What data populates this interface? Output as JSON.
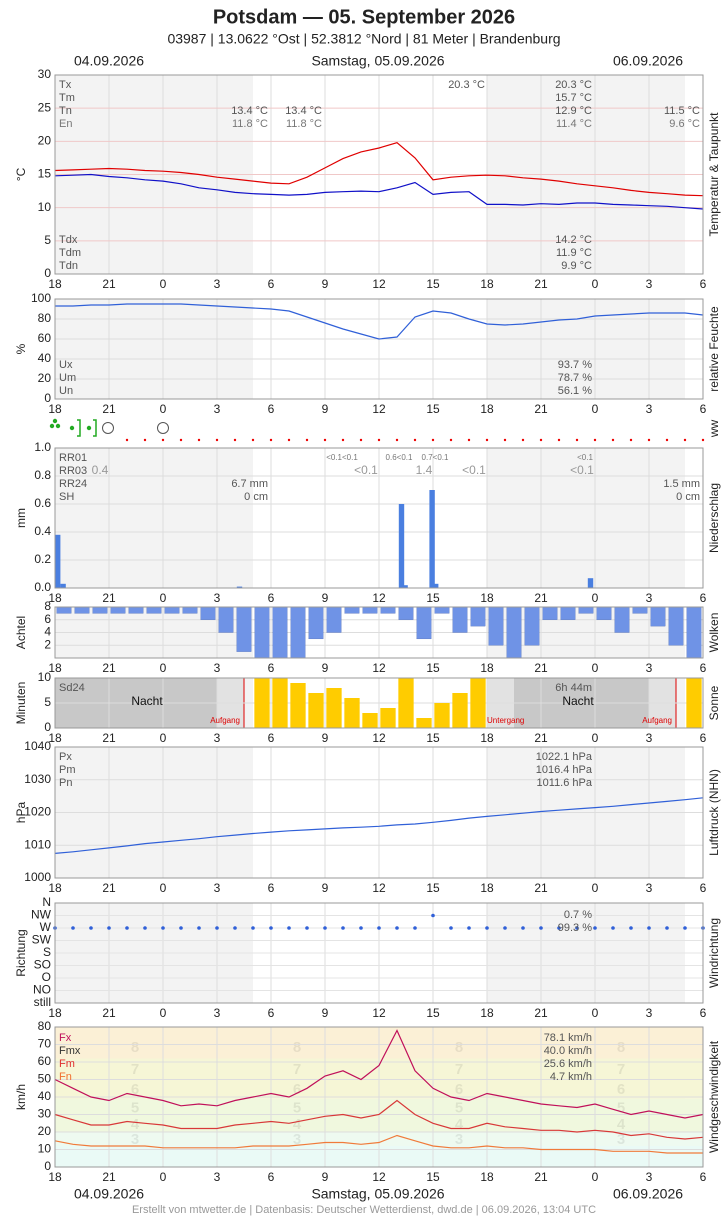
{
  "title": "Potsdam  —  05. September 2026",
  "subtitle": "03987  |  13.0622 °Ost  |  52.3812 °Nord  |  81 Meter  |  Brandenburg",
  "dates": [
    "04.09.2026",
    "Samstag, 05.09.2026",
    "06.09.2026"
  ],
  "footer": "Erstellt von mtwetter.de | Datenbasis: Deutscher Wetterdienst, dwd.de | 06.09.2026, 13:04 UTC",
  "x_axis": {
    "xlim": [
      -6,
      30
    ],
    "xticks": [
      {
        "value": -6,
        "label": "18"
      },
      {
        "value": -3,
        "label": "21"
      },
      0,
      3,
      6,
      9,
      12,
      15,
      18,
      21,
      {
        "value": 24,
        "label": "0"
      },
      {
        "value": 27,
        "label": "3"
      },
      {
        "value": 30,
        "label": "6"
      }
    ]
  },
  "chart_data": [
    {
      "type": "line",
      "side_label": "Temperatur & Taupunkt",
      "ylabel": "°C",
      "ylim": [
        0,
        30
      ],
      "yticks": [
        0,
        5,
        10,
        15,
        20,
        25,
        30
      ],
      "x": [
        -6,
        -5,
        -4,
        -3,
        -2,
        -1,
        0,
        1,
        2,
        3,
        4,
        5,
        6,
        7,
        8,
        9,
        10,
        11,
        12,
        13,
        14,
        15,
        16,
        17,
        18,
        19,
        20,
        21,
        22,
        23,
        24,
        25,
        26,
        27,
        28,
        29,
        30
      ],
      "series": [
        {
          "color": "#e00000",
          "values": [
            15.6,
            15.7,
            15.8,
            15.9,
            15.8,
            15.6,
            15.5,
            15.3,
            15.0,
            14.6,
            14.3,
            14.0,
            13.7,
            13.6,
            14.6,
            16.0,
            17.4,
            18.4,
            19.0,
            19.8,
            17.5,
            14.2,
            14.6,
            14.8,
            14.9,
            14.8,
            14.5,
            14.3,
            14.0,
            13.6,
            13.3,
            13.0,
            12.6,
            12.3,
            12.1,
            11.9,
            11.8
          ]
        },
        {
          "color": "#1010c8",
          "values": [
            14.8,
            14.9,
            15.0,
            14.7,
            14.5,
            14.2,
            14.0,
            13.6,
            13.0,
            12.7,
            12.3,
            12.1,
            12.0,
            11.9,
            12.0,
            12.3,
            12.4,
            12.5,
            12.4,
            13.0,
            13.8,
            12.0,
            12.3,
            12.4,
            10.5,
            10.5,
            10.4,
            10.6,
            10.5,
            10.7,
            10.7,
            10.5,
            10.4,
            10.3,
            10.2,
            10.0,
            9.8
          ]
        }
      ],
      "notes": [
        "Tx",
        "Tm",
        "Tn",
        "En",
        "20.3 °C",
        "20.3 °C",
        "15.7 °C",
        "12.9 °C",
        "11.4 °C",
        "13.4 °C",
        "11.8 °C",
        "13.4 °C",
        "11.8 °C",
        "11.5 °C",
        "9.6 °C",
        "Tdx",
        "Tdm",
        "Tdn",
        "14.2 °C",
        "11.9 °C",
        "9.9 °C"
      ]
    },
    {
      "type": "line",
      "side_label": "relative Feuchte",
      "ylabel": "%",
      "ylim": [
        0,
        100
      ],
      "yticks": [
        0,
        20,
        40,
        60,
        80,
        100
      ],
      "color": "#3060d8",
      "x": [
        -6,
        -5,
        -4,
        -3,
        -2,
        -1,
        0,
        1,
        2,
        3,
        4,
        5,
        6,
        7,
        8,
        9,
        10,
        11,
        12,
        13,
        14,
        15,
        16,
        17,
        18,
        19,
        20,
        21,
        22,
        23,
        24,
        25,
        26,
        27,
        28,
        29,
        30
      ],
      "values": [
        93,
        93,
        94,
        94,
        95,
        95,
        95,
        95,
        94,
        93,
        92,
        91,
        90,
        88,
        82,
        76,
        70,
        65,
        60,
        62,
        82,
        88,
        86,
        80,
        75,
        74,
        75,
        77,
        79,
        80,
        83,
        84,
        85,
        86,
        86,
        86,
        84
      ],
      "notes": [
        "Ux",
        "Um",
        "Un",
        "93.7 %",
        "78.7 %",
        "56.1 %"
      ]
    },
    {
      "type": "symbols",
      "side_label": "ww"
    },
    {
      "type": "bar",
      "side_label": "Niederschlag",
      "ylabel": "mm",
      "ylim": [
        0,
        1
      ],
      "color": "#4a7fe0",
      "yticks": [
        {
          "value": 0,
          "label": "0.0"
        },
        {
          "value": 0.2,
          "label": "0.2"
        },
        {
          "value": 0.4,
          "label": "0.4"
        },
        {
          "value": 0.6,
          "label": "0.6"
        },
        {
          "value": 0.8,
          "label": "0.8"
        },
        {
          "value": 1,
          "label": "1.0"
        }
      ],
      "x": [
        -6,
        -5.7,
        4.1,
        13.1,
        13.3,
        14.8,
        15.0,
        23.6
      ],
      "values": [
        0.38,
        0.03,
        0.01,
        0.6,
        0.02,
        0.7,
        0.03,
        0.07
      ],
      "notes": [
        "RR01",
        "RR03",
        "RR24",
        "SH",
        "0.4",
        "6.7 mm",
        "0 cm",
        "<0.1<0.1",
        "0.6<0.1",
        "0.7<0.1",
        "<0.1",
        "<0.1",
        "1.4",
        "<0.1",
        "<0.1",
        "1.5 mm",
        "0 cm"
      ]
    },
    {
      "type": "bar",
      "from_top": true,
      "side_label": "Wolken",
      "ylabel": "Achtel",
      "ylim": [
        0,
        8
      ],
      "yticks": [
        2,
        4,
        6,
        8
      ],
      "color": "#6f93e6",
      "x": [
        -6,
        -5,
        -4,
        -3,
        -2,
        -1,
        0,
        1,
        2,
        3,
        4,
        5,
        6,
        7,
        8,
        9,
        10,
        11,
        12,
        13,
        14,
        15,
        16,
        17,
        18,
        19,
        20,
        21,
        22,
        23,
        24,
        25,
        26,
        27,
        28,
        29
      ],
      "values": [
        1,
        1,
        1,
        1,
        1,
        1,
        1,
        1,
        2,
        4,
        7,
        8,
        8,
        8,
        5,
        4,
        1,
        1,
        1,
        2,
        5,
        1,
        4,
        3,
        6,
        8,
        6,
        2,
        2,
        1,
        2,
        4,
        1,
        3,
        6,
        8
      ]
    },
    {
      "type": "bar",
      "side_label": "Sonne",
      "ylabel": "Minuten",
      "ylim": [
        0,
        10
      ],
      "yticks": [
        0,
        5,
        10
      ],
      "color": "#ffcc00",
      "x": [
        -6,
        -5,
        -4,
        -3,
        -2,
        -1,
        0,
        1,
        2,
        3,
        4,
        5,
        6,
        7,
        8,
        9,
        10,
        11,
        12,
        13,
        14,
        15,
        16,
        17,
        18,
        19,
        20,
        21,
        22,
        23,
        24,
        25,
        26,
        27,
        28,
        29
      ],
      "values": [
        0,
        0,
        0,
        0,
        0,
        0,
        0,
        0,
        0,
        0,
        0,
        10,
        10,
        9,
        7,
        8,
        6,
        3,
        4,
        10,
        2,
        5,
        7,
        10,
        0,
        0,
        0,
        0,
        0,
        0,
        0,
        0,
        0,
        0,
        0,
        10
      ],
      "notes": [
        "Sd24",
        "Nacht",
        "Aufgang",
        "Untergang",
        "6h 44m",
        "Nacht",
        "Aufgang"
      ]
    },
    {
      "type": "line",
      "side_label": "Luftdruck (NHN)",
      "ylabel": "hPa",
      "ylim": [
        1000,
        1040
      ],
      "yticks": [
        1000,
        1010,
        1020,
        1030,
        1040
      ],
      "color": "#3060d8",
      "x": [
        -6,
        -5,
        -4,
        -3,
        -2,
        -1,
        0,
        1,
        2,
        3,
        4,
        5,
        6,
        7,
        8,
        9,
        10,
        11,
        12,
        13,
        14,
        15,
        16,
        17,
        18,
        19,
        20,
        21,
        22,
        23,
        24,
        25,
        26,
        27,
        28,
        29,
        30
      ],
      "values": [
        1007.5,
        1008,
        1008.6,
        1009.2,
        1009.8,
        1010.5,
        1011,
        1011.5,
        1012,
        1012.6,
        1013.1,
        1013.6,
        1014,
        1014.4,
        1014.7,
        1015,
        1015.3,
        1015.5,
        1015.8,
        1016.2,
        1016.5,
        1017,
        1017.6,
        1018.3,
        1018.8,
        1019.3,
        1019.8,
        1020.3,
        1020.7,
        1021.1,
        1021.5,
        1021.9,
        1022.4,
        1022.9,
        1023.4,
        1023.9,
        1024.5
      ],
      "notes": [
        "Px",
        "Pm",
        "Pn",
        "1022.1 hPa",
        "1016.4 hPa",
        "1011.6 hPa"
      ]
    },
    {
      "type": "scatter",
      "side_label": "Windrichtung",
      "ylabel": "Richtung",
      "color": "#3060d8",
      "categories": [
        "still",
        "NO",
        "O",
        "SO",
        "S",
        "SW",
        "W",
        "NW",
        "N"
      ],
      "x": [
        -6,
        -5,
        -4,
        -3,
        -2,
        -1,
        0,
        1,
        2,
        3,
        4,
        5,
        6,
        7,
        8,
        9,
        10,
        11,
        12,
        13,
        14,
        15,
        16,
        17,
        18,
        19,
        20,
        21,
        22,
        23,
        24,
        25,
        26,
        27,
        28,
        29,
        30
      ],
      "values": [
        "W",
        "W",
        "W",
        "W",
        "W",
        "W",
        "W",
        "W",
        "W",
        "W",
        "W",
        "W",
        "W",
        "W",
        "W",
        "W",
        "W",
        "W",
        "W",
        "W",
        "W",
        "NW",
        "W",
        "W",
        "W",
        "W",
        "W",
        "W",
        "W",
        "W",
        "W",
        "W",
        "W",
        "W",
        "W",
        "W",
        "W"
      ],
      "notes": [
        "0.7 %",
        "99.3 %"
      ]
    },
    {
      "type": "line",
      "side_label": "Windgeschwindigkeit",
      "ylabel": "km/h",
      "ylim": [
        0,
        80
      ],
      "yticks": [
        0,
        10,
        20,
        30,
        40,
        50,
        60,
        70,
        80
      ],
      "x": [
        -6,
        -5,
        -4,
        -3,
        -2,
        -1,
        0,
        1,
        2,
        3,
        4,
        5,
        6,
        7,
        8,
        9,
        10,
        11,
        12,
        13,
        14,
        15,
        16,
        17,
        18,
        19,
        20,
        21,
        22,
        23,
        24,
        25,
        26,
        27,
        28,
        29,
        30
      ],
      "series": [
        {
          "color": "#c0105a",
          "values": [
            50,
            45,
            40,
            38,
            42,
            40,
            38,
            35,
            36,
            35,
            38,
            40,
            42,
            40,
            45,
            52,
            55,
            50,
            58,
            78,
            55,
            45,
            40,
            38,
            42,
            40,
            38,
            36,
            35,
            34,
            36,
            33,
            30,
            32,
            30,
            28,
            30
          ]
        },
        {
          "color": "#d83838",
          "values": [
            30,
            27,
            24,
            24,
            26,
            25,
            24,
            22,
            22,
            22,
            24,
            25,
            26,
            25,
            27,
            29,
            30,
            28,
            30,
            38,
            30,
            25,
            22,
            22,
            25,
            23,
            22,
            21,
            21,
            20,
            21,
            20,
            18,
            19,
            17,
            16,
            17
          ]
        },
        {
          "color": "#f07a3a",
          "values": [
            15,
            13,
            12,
            12,
            12,
            12,
            11,
            11,
            11,
            11,
            11,
            12,
            12,
            12,
            13,
            14,
            14,
            13,
            14,
            18,
            15,
            12,
            11,
            11,
            12,
            11,
            11,
            10,
            10,
            10,
            10,
            9,
            9,
            9,
            8,
            8,
            8
          ]
        }
      ],
      "beaufort": [
        "8",
        "7",
        "6",
        "5",
        "4",
        "3"
      ],
      "notes": [
        "Fx",
        "Fmx",
        "Fm",
        "Fn",
        "78.1 km/h",
        "40.0 km/h",
        "25.6 km/h",
        "4.7 km/h"
      ]
    }
  ]
}
